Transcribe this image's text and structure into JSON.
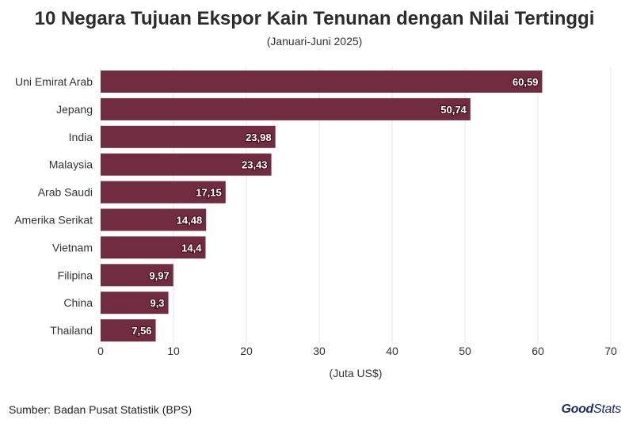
{
  "title": "10 Negara Tujuan Ekspor Kain Tenunan dengan Nilai Tertinggi",
  "subtitle": "(Januari-Juni 2025)",
  "source": "Sumber: Badan Pusat Statistik (BPS)",
  "logo": {
    "part1": "Good",
    "part2": "Stats"
  },
  "colors": {
    "bar": "#722c42",
    "grid": "#e6e6e6",
    "label": "#ffffff"
  },
  "chart_data": {
    "type": "bar",
    "orientation": "horizontal",
    "categories": [
      "Uni Emirat Arab",
      "Jepang",
      "India",
      "Malaysia",
      "Arab Saudi",
      "Amerika Serikat",
      "Vietnam",
      "Filipina",
      "China",
      "Thailand"
    ],
    "values": [
      60.59,
      50.74,
      23.98,
      23.43,
      17.15,
      14.48,
      14.4,
      9.97,
      9.3,
      7.56
    ],
    "value_labels": [
      "60,59",
      "50,74",
      "23,98",
      "23,43",
      "17,15",
      "14,48",
      "14,4",
      "9,97",
      "9,3",
      "7,56"
    ],
    "xlabel": "(Juta US$)",
    "xlim": [
      0,
      70
    ],
    "xticks": [
      0,
      10,
      20,
      30,
      40,
      50,
      60,
      70
    ],
    "grid": "vertical"
  }
}
